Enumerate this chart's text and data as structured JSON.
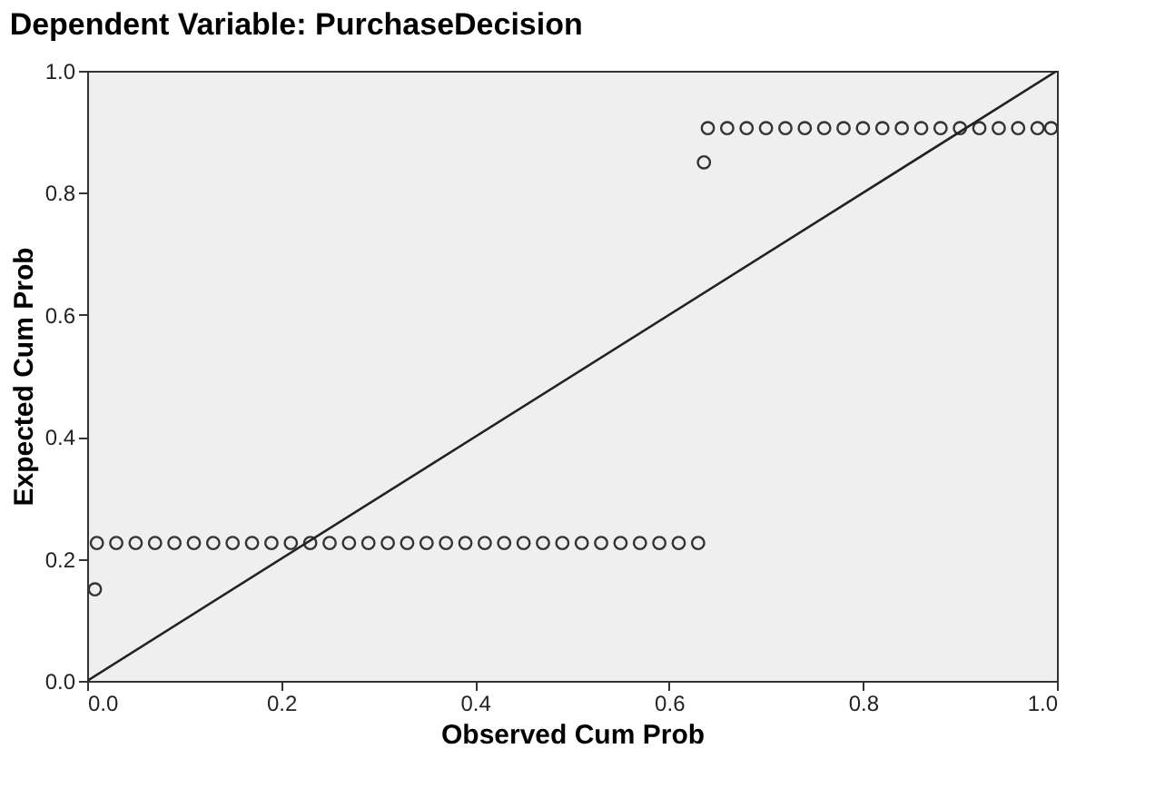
{
  "chart_data": {
    "type": "scatter",
    "title": "Dependent Variable: PurchaseDecision",
    "xlabel": "Observed Cum Prob",
    "ylabel": "Expected Cum Prob",
    "xlim": [
      0,
      1
    ],
    "ylim": [
      0,
      1
    ],
    "xticks": [
      {
        "value": 0,
        "label": "0.0"
      },
      0.2,
      0.4,
      0.6,
      0.8,
      {
        "value": 1,
        "label": "1.0"
      }
    ],
    "yticks": [
      {
        "value": 0,
        "label": "0.0"
      },
      0.2,
      0.4,
      0.6,
      0.8,
      {
        "value": 1,
        "label": "1.0"
      }
    ],
    "grid": false,
    "series": [
      {
        "color": "#333333",
        "marker": "circle",
        "x": [
          0.008,
          0.01,
          0.03,
          0.05,
          0.07,
          0.09,
          0.11,
          0.13,
          0.15,
          0.17,
          0.19,
          0.21,
          0.23,
          0.25,
          0.27,
          0.29,
          0.31,
          0.33,
          0.35,
          0.37,
          0.39,
          0.41,
          0.43,
          0.45,
          0.47,
          0.49,
          0.51,
          0.53,
          0.55,
          0.57,
          0.59,
          0.61,
          0.63,
          0.636,
          0.64,
          0.66,
          0.68,
          0.7,
          0.72,
          0.74,
          0.76,
          0.78,
          0.8,
          0.82,
          0.84,
          0.86,
          0.88,
          0.9,
          0.92,
          0.94,
          0.96,
          0.98,
          0.994
        ],
        "values": [
          0.15,
          0.226,
          0.226,
          0.226,
          0.226,
          0.226,
          0.226,
          0.226,
          0.226,
          0.226,
          0.226,
          0.226,
          0.226,
          0.226,
          0.226,
          0.226,
          0.226,
          0.226,
          0.226,
          0.226,
          0.226,
          0.226,
          0.226,
          0.226,
          0.226,
          0.226,
          0.226,
          0.226,
          0.226,
          0.226,
          0.226,
          0.226,
          0.226,
          0.85,
          0.906,
          0.906,
          0.906,
          0.906,
          0.906,
          0.906,
          0.906,
          0.906,
          0.906,
          0.906,
          0.906,
          0.906,
          0.906,
          0.906,
          0.906,
          0.906,
          0.906,
          0.906,
          0.906
        ]
      },
      {
        "type": "line",
        "color": "#222222",
        "x": [
          0,
          1
        ],
        "values": [
          0,
          1
        ],
        "line_style": "solid"
      }
    ]
  }
}
